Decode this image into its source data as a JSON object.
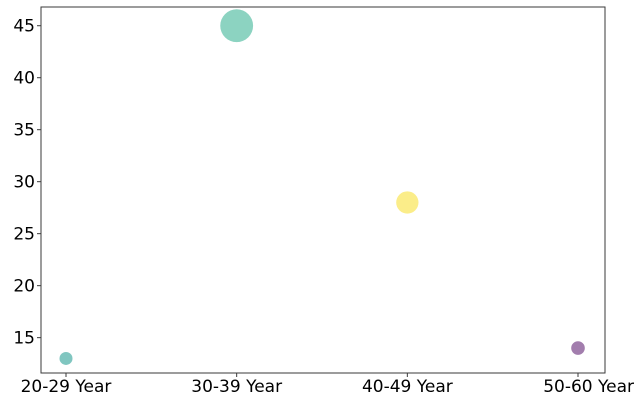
{
  "chart_data": {
    "type": "scatter",
    "title": "",
    "xlabel": "",
    "ylabel": "",
    "categories": [
      "20-29 Year",
      "30-39 Year",
      "40-49 Year",
      "50-60 Year"
    ],
    "values": [
      13,
      45,
      28,
      14
    ],
    "point_colors": [
      "#79c3bd",
      "#86d1be",
      "#fbec83",
      "#9d76a9"
    ],
    "ylim": [
      11.6,
      46.8
    ],
    "yticks": [
      15,
      20,
      25,
      30,
      35,
      40,
      45
    ],
    "grid": false,
    "legend": "none"
  }
}
